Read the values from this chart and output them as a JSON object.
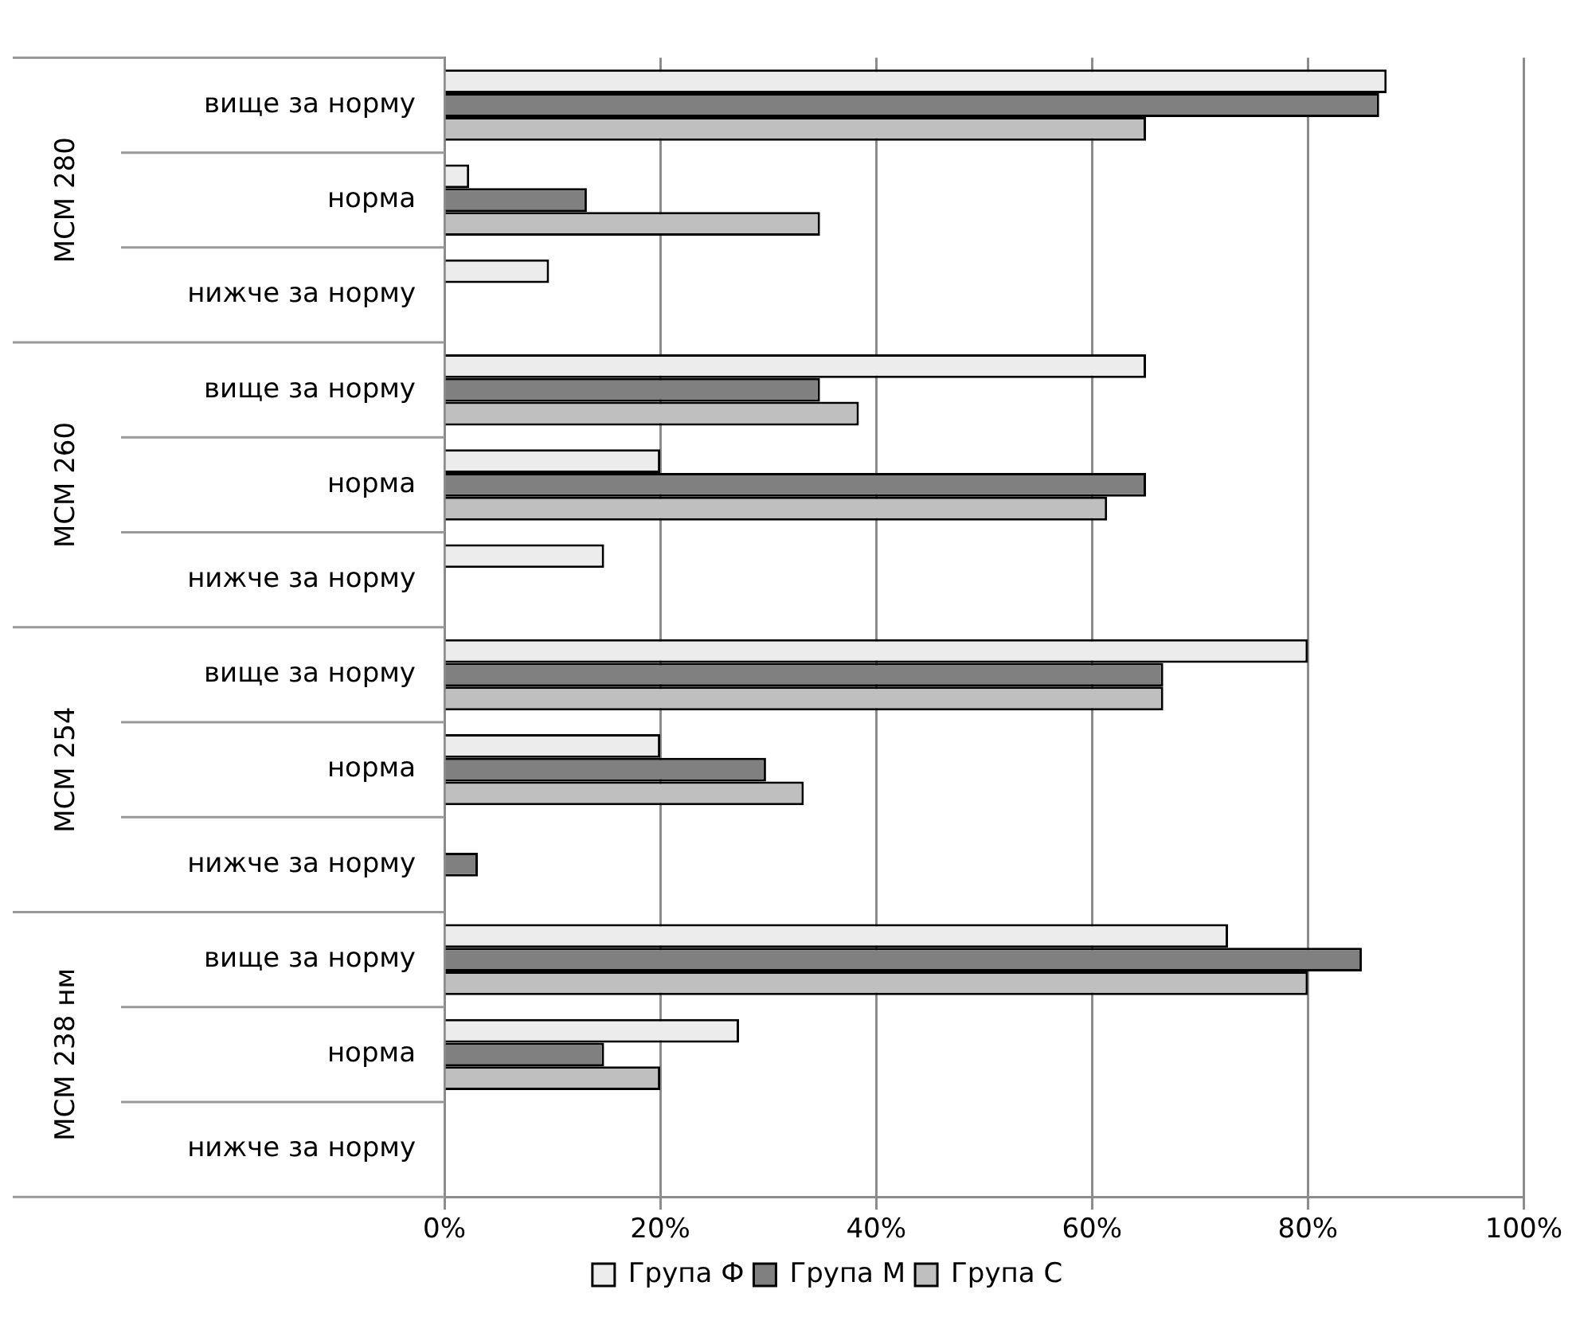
{
  "chart_data": {
    "type": "bar",
    "orientation": "horizontal",
    "categories": [
      "вище за норму",
      "норма",
      "нижче за норму",
      "вище за норму",
      "норма",
      "нижче за норму",
      "вище за норму",
      "норма",
      "нижче за норму",
      "вище за норму",
      "норма",
      "нижче за норму"
    ],
    "annotations": [
      "МСМ 280",
      "МСМ 260",
      "МСМ 254",
      "МСМ 238 нм"
    ],
    "series": [
      {
        "name": "Група Ф",
        "color": "#ececec",
        "values": [
          87.3,
          2.3,
          9.7,
          65,
          20,
          14.8,
          80,
          20,
          0,
          72.6,
          27.3,
          0
        ]
      },
      {
        "name": "Група М",
        "color": "#808080",
        "values": [
          86.6,
          13.2,
          0,
          34.8,
          65,
          0,
          66.6,
          29.8,
          3.1,
          85,
          14.8,
          0
        ]
      },
      {
        "name": "Група С",
        "color": "#bfbfbf",
        "values": [
          65,
          34.8,
          0,
          38.4,
          61.4,
          0,
          66.6,
          33.3,
          0,
          80,
          20,
          0
        ]
      }
    ],
    "xlim": [
      0,
      100
    ],
    "xticks": [
      {
        "value": 0,
        "label": "0%"
      },
      {
        "value": 20,
        "label": "20%"
      },
      {
        "value": 40,
        "label": "40%"
      },
      {
        "value": 60,
        "label": "60%"
      },
      {
        "value": 80,
        "label": "80%"
      },
      {
        "value": 100,
        "label": "100%"
      }
    ],
    "grid": "x",
    "legend": "bottom"
  }
}
